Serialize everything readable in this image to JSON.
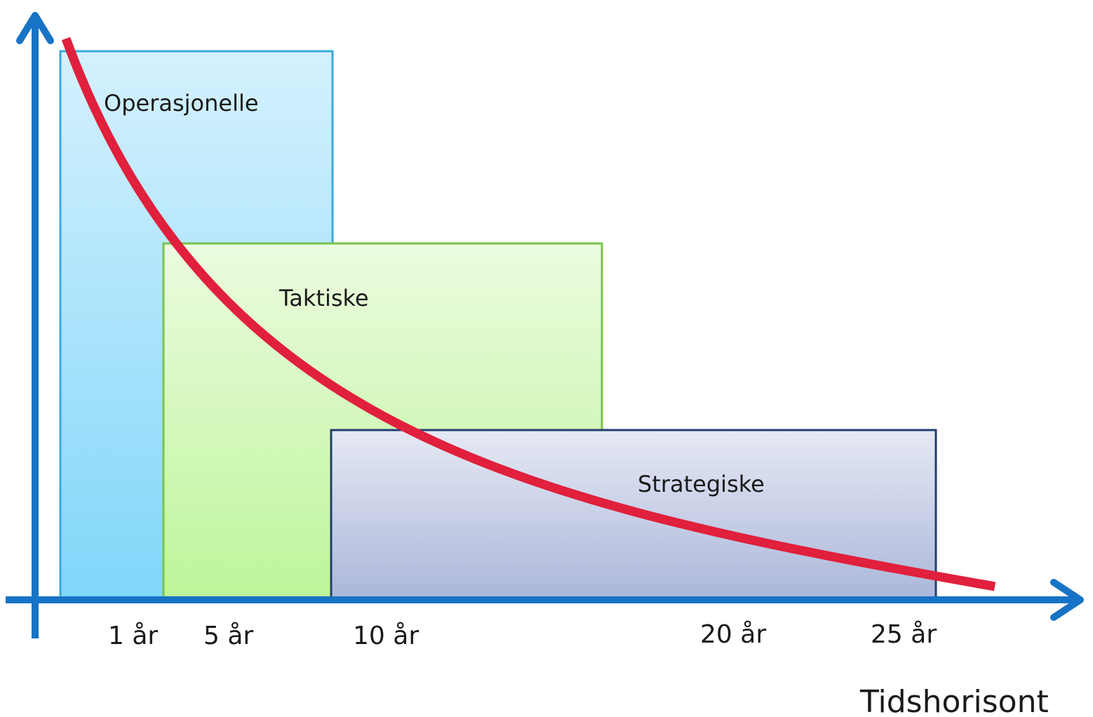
{
  "boxes": [
    {
      "key": "operational",
      "label": "Operasjonelle"
    },
    {
      "key": "tactical",
      "label": "Taktiske"
    },
    {
      "key": "strategic",
      "label": "Strategiske"
    }
  ],
  "x_axis": {
    "title": "Tidshorisont",
    "ticks": [
      "1 år",
      "5 år",
      "10 år",
      "20 år",
      "25 år"
    ]
  },
  "colors": {
    "axis": "#1773c5",
    "curve": "#e0203c",
    "operational_fill_top": "#d5f1fd",
    "operational_fill_bottom": "#80d6fa",
    "operational_border": "#3aa8e0",
    "tactical_fill_top": "#ecfbdf",
    "tactical_fill_bottom": "#bcf59a",
    "tactical_border": "#79c24a",
    "strategic_fill_top": "#e6e9f4",
    "strategic_fill_bottom": "#aab6d9",
    "strategic_border": "#1f3f6e"
  }
}
